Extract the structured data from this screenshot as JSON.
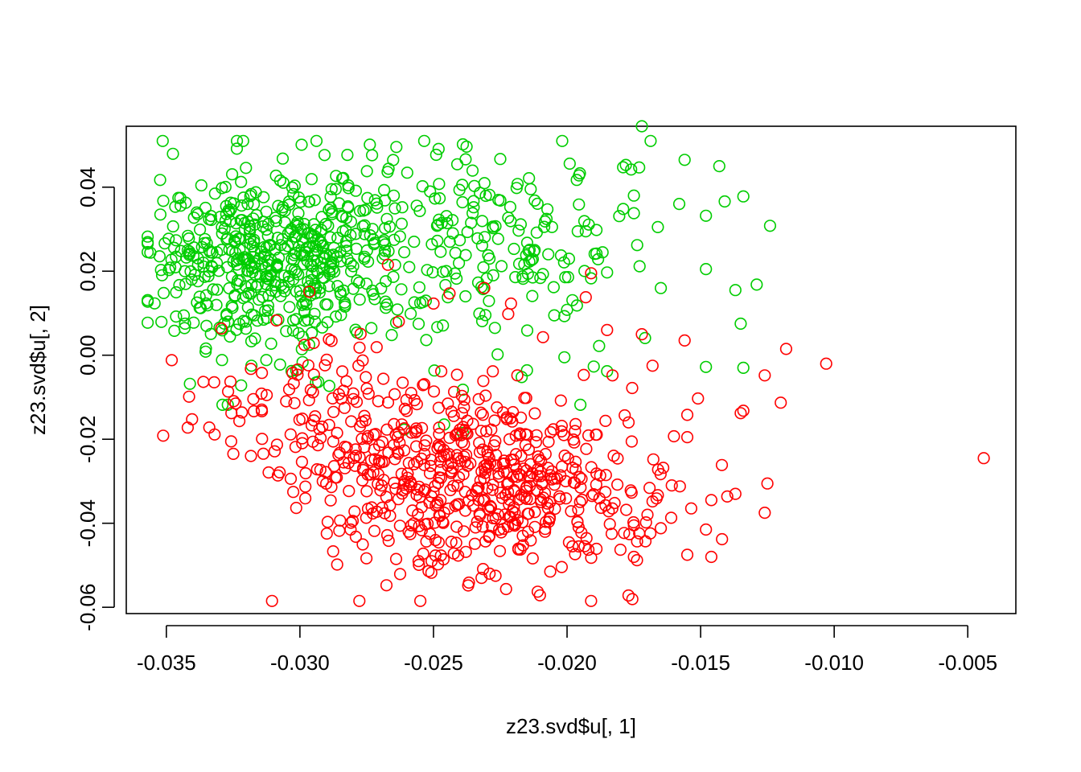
{
  "chart_data": {
    "type": "scatter",
    "title": "",
    "xlabel": "z23.svd$u[, 1]",
    "ylabel": "z23.svd$u[, 2]",
    "xlim": [
      -0.0365,
      -0.0032
    ],
    "ylim": [
      -0.0615,
      0.0545
    ],
    "xticks": [
      -0.035,
      -0.03,
      -0.025,
      -0.02,
      -0.015,
      -0.01,
      -0.005
    ],
    "xtick_labels": [
      "-0.035",
      "-0.030",
      "-0.025",
      "-0.020",
      "-0.015",
      "-0.010",
      "-0.005"
    ],
    "yticks": [
      -0.06,
      -0.04,
      -0.02,
      0.0,
      0.02,
      0.04
    ],
    "ytick_labels": [
      "-0.06",
      "-0.04",
      "-0.02",
      "0.00",
      "0.02",
      "0.04"
    ],
    "grid": false,
    "legend": "none",
    "series": [
      {
        "color": "#00CD00",
        "marker": "open-circle",
        "clusters": [
          {
            "cx": -0.0315,
            "cy": 0.022,
            "sx": 0.0022,
            "sy": 0.0105,
            "n": 430
          },
          {
            "cx": -0.0262,
            "cy": 0.028,
            "sx": 0.0028,
            "sy": 0.0115,
            "n": 200
          },
          {
            "cx": -0.0212,
            "cy": 0.026,
            "sx": 0.0022,
            "sy": 0.012,
            "n": 60
          }
        ],
        "points": [
          [
            -0.0172,
            0.0545
          ],
          [
            -0.0156,
            0.0465
          ],
          [
            -0.0143,
            0.045
          ],
          [
            -0.0134,
            0.0378
          ],
          [
            -0.0124,
            0.0308
          ],
          [
            -0.0148,
            0.0332
          ],
          [
            -0.0158,
            0.036
          ],
          [
            -0.0148,
            0.0205
          ],
          [
            -0.0129,
            0.0168
          ],
          [
            -0.0137,
            0.0155
          ],
          [
            -0.0135,
            0.0075
          ],
          [
            -0.0148,
            -0.0028
          ],
          [
            -0.0134,
            -0.003
          ],
          [
            -0.0166,
            0.0305
          ],
          [
            -0.0175,
            0.0338
          ],
          [
            -0.0179,
            0.0348
          ],
          [
            -0.0178,
            0.0453
          ],
          [
            -0.0176,
            0.0442
          ],
          [
            -0.0173,
            0.0447
          ],
          [
            -0.0175,
            0.038
          ],
          [
            -0.0141,
            0.0366
          ],
          [
            -0.0199,
            0.0456
          ],
          [
            -0.0225,
            0.0467
          ],
          [
            -0.0239,
            0.0502
          ],
          [
            -0.0249,
            0.0477
          ],
          [
            -0.0273,
            0.0476
          ],
          [
            -0.0188,
            0.0022
          ],
          [
            -0.0191,
            0.0183
          ],
          [
            -0.0189,
            0.0242
          ],
          [
            -0.0185,
            0.0197
          ],
          [
            -0.0189,
            0.0298
          ],
          [
            -0.0193,
            0.0295
          ],
          [
            -0.0196,
            0.0295
          ],
          [
            -0.0205,
            0.0162
          ],
          [
            -0.0198,
            0.0131
          ],
          [
            -0.02,
            0.0108
          ],
          [
            -0.0201,
            0.0093
          ],
          [
            -0.0201,
            -0.0005
          ],
          [
            -0.0195,
            -0.0118
          ],
          [
            -0.019,
            -0.0027
          ],
          [
            -0.0185,
            -0.0038
          ],
          [
            -0.0213,
            0.0141
          ],
          [
            -0.0227,
            0.0065
          ],
          [
            -0.0226,
            0.0002
          ],
          [
            -0.0217,
            -0.0052
          ],
          [
            -0.0215,
            -0.0036
          ],
          [
            -0.0239,
            -0.0082
          ],
          [
            -0.0239,
            -0.0185
          ],
          [
            -0.0246,
            -0.0165
          ],
          [
            -0.0261,
            -0.0177
          ],
          [
            -0.0289,
            -0.0073
          ],
          [
            -0.0294,
            -0.0065
          ],
          [
            -0.0322,
            -0.0072
          ],
          [
            -0.0327,
            -0.0118
          ],
          [
            -0.0329,
            -0.0118
          ],
          [
            -0.0356,
            0.0244
          ],
          [
            -0.0352,
            0.0203
          ],
          [
            -0.0351,
            0.0148
          ],
          [
            -0.0347,
            0.0058
          ],
          [
            -0.0343,
            0.0075
          ]
        ]
      },
      {
        "color": "#FF0000",
        "marker": "open-circle",
        "clusters": [
          {
            "cx": -0.0242,
            "cy": -0.03,
            "sx": 0.0028,
            "sy": 0.0105,
            "n": 420
          },
          {
            "cx": -0.0295,
            "cy": -0.014,
            "sx": 0.0024,
            "sy": 0.011,
            "n": 120
          },
          {
            "cx": -0.0205,
            "cy": -0.034,
            "sx": 0.0025,
            "sy": 0.0095,
            "n": 110
          }
        ],
        "points": [
          [
            -0.0044,
            -0.0245
          ],
          [
            -0.0103,
            -0.002
          ],
          [
            -0.0118,
            0.0015
          ],
          [
            -0.012,
            -0.0113
          ],
          [
            -0.0126,
            -0.0048
          ],
          [
            -0.0126,
            -0.0375
          ],
          [
            -0.0134,
            -0.0132
          ],
          [
            -0.0135,
            -0.0138
          ],
          [
            -0.0137,
            -0.033
          ],
          [
            -0.0142,
            -0.0438
          ],
          [
            -0.0146,
            -0.0345
          ],
          [
            -0.0146,
            -0.048
          ],
          [
            -0.0148,
            -0.0415
          ],
          [
            -0.0151,
            -0.0103
          ],
          [
            -0.0155,
            -0.0142
          ],
          [
            -0.0155,
            -0.0195
          ],
          [
            -0.0155,
            -0.0475
          ],
          [
            -0.0156,
            0.0035
          ],
          [
            -0.016,
            -0.0193
          ],
          [
            -0.0161,
            -0.0387
          ],
          [
            -0.0164,
            -0.0268
          ],
          [
            -0.0165,
            -0.0283
          ],
          [
            -0.0166,
            -0.0333
          ],
          [
            -0.0168,
            -0.0348
          ],
          [
            -0.0168,
            -0.0025
          ],
          [
            -0.0172,
            0.005
          ],
          [
            -0.0175,
            -0.0405
          ],
          [
            -0.0175,
            -0.048
          ],
          [
            -0.0177,
            -0.0572
          ],
          [
            -0.0173,
            -0.0424
          ],
          [
            -0.018,
            -0.0463
          ],
          [
            -0.0183,
            -0.0048
          ],
          [
            -0.0185,
            0.006
          ],
          [
            -0.0184,
            -0.0402
          ],
          [
            -0.0189,
            -0.0461
          ],
          [
            -0.0192,
            -0.0463
          ],
          [
            -0.0198,
            -0.0455
          ],
          [
            -0.0193,
            0.0138
          ],
          [
            -0.0191,
            0.0195
          ],
          [
            -0.0209,
            0.0043
          ],
          [
            -0.0221,
            0.0123
          ],
          [
            -0.0222,
            0.0098
          ],
          [
            -0.0231,
            0.016
          ],
          [
            -0.0244,
            0.0147
          ],
          [
            -0.025,
            0.0123
          ],
          [
            -0.0264,
            -0.0485
          ],
          [
            -0.0237,
            -0.0548
          ],
          [
            -0.0211,
            -0.0563
          ],
          [
            -0.0232,
            -0.053
          ],
          [
            -0.0229,
            -0.052
          ]
        ]
      }
    ]
  }
}
